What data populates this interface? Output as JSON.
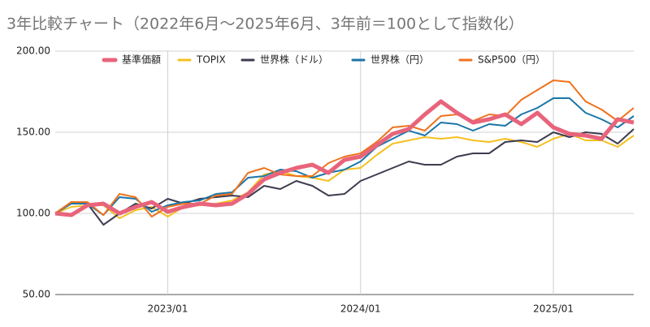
{
  "chart_data": {
    "type": "line",
    "title": "3年比較チャート（2022年6月～2025年6月、3年前＝100として指数化）",
    "categories": [
      null,
      null,
      null,
      null,
      null,
      null,
      null,
      "2023/01",
      null,
      null,
      null,
      null,
      null,
      null,
      null,
      null,
      null,
      null,
      null,
      "2024/01",
      null,
      null,
      null,
      null,
      null,
      null,
      null,
      null,
      null,
      null,
      null,
      "2025/01",
      null,
      null,
      null,
      null,
      null
    ],
    "series": [
      {
        "name": "基準価額",
        "color": "#e8647b",
        "values": [
          100,
          99,
          105,
          106,
          100,
          104,
          107,
          101,
          104,
          106,
          105,
          106,
          112,
          121,
          125,
          128,
          130,
          125,
          133,
          135,
          142,
          149,
          152,
          161,
          169,
          162,
          156,
          158,
          161,
          155,
          162,
          153,
          149,
          148,
          146,
          158,
          156
        ]
      },
      {
        "name": "TOPIX",
        "color": "#f5c01f",
        "values": [
          100,
          104,
          105,
          105,
          97,
          102,
          104,
          98,
          104,
          105,
          106,
          108,
          113,
          124,
          126,
          123,
          122,
          120,
          127,
          128,
          136,
          143,
          145,
          147,
          146,
          147,
          145,
          144,
          146,
          144,
          141,
          146,
          149,
          145,
          145,
          141,
          148
        ]
      },
      {
        "name": "世界株（ドル）",
        "color": "#3d3c50",
        "values": [
          100,
          107,
          106,
          93,
          100,
          106,
          103,
          109,
          106,
          109,
          110,
          111,
          110,
          117,
          115,
          120,
          117,
          111,
          112,
          120,
          124,
          128,
          132,
          130,
          130,
          135,
          137,
          137,
          144,
          145,
          144,
          150,
          147,
          150,
          149,
          143,
          152
        ]
      },
      {
        "name": "世界株（円）",
        "color": "#1b76a8",
        "values": [
          100,
          106,
          106,
          99,
          110,
          109,
          101,
          105,
          107,
          108,
          112,
          113,
          122,
          123,
          127,
          126,
          122,
          125,
          127,
          132,
          141,
          146,
          151,
          148,
          156,
          155,
          151,
          155,
          154,
          161,
          165,
          171,
          171,
          162,
          158,
          153,
          160
        ]
      },
      {
        "name": "S&P500（円）",
        "color": "#f0721d",
        "values": [
          100,
          107,
          107,
          99,
          112,
          110,
          98,
          104,
          106,
          106,
          111,
          112,
          125,
          128,
          124,
          123,
          123,
          131,
          135,
          137,
          144,
          153,
          154,
          151,
          160,
          161,
          157,
          161,
          160,
          170,
          176,
          182,
          181,
          169,
          164,
          157,
          165
        ]
      }
    ],
    "ylim": [
      50,
      200
    ],
    "yticks": [
      {
        "value": 50,
        "label": "50.00"
      },
      {
        "value": 100,
        "label": "100.00"
      },
      {
        "value": 150,
        "label": "150.00"
      },
      {
        "value": 200,
        "label": "200.00"
      }
    ],
    "grid": true,
    "legend": "top"
  }
}
